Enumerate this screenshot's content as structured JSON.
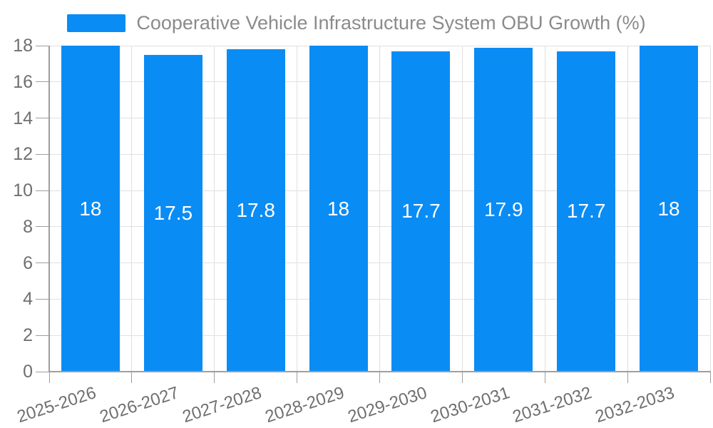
{
  "chart_data": {
    "type": "bar",
    "title": "",
    "legend_label": "Cooperative Vehicle Infrastructure System OBU Growth (%)",
    "legend_position": "top-center",
    "categories": [
      "2025-2026",
      "2026-2027",
      "2027-2028",
      "2028-2029",
      "2029-2030",
      "2030-2031",
      "2031-2032",
      "2032-2033"
    ],
    "values": [
      18,
      17.5,
      17.8,
      18,
      17.7,
      17.9,
      17.7,
      18
    ],
    "value_labels": [
      "18",
      "17.5",
      "17.8",
      "18",
      "17.7",
      "17.9",
      "17.7",
      "18"
    ],
    "xlabel": "",
    "ylabel": "",
    "ylim": [
      0,
      18
    ],
    "yticks": [
      0,
      2,
      4,
      6,
      8,
      10,
      12,
      14,
      16,
      18
    ],
    "grid": true,
    "colors": {
      "bar": "#0a8cf5",
      "grid_line": "#e0e0e0",
      "axis_line": "#9e9e9e",
      "tick_label": "#6f6f6f",
      "legend_text": "#8b8b8b",
      "value_label": "#ffffff",
      "background": "#ffffff"
    }
  }
}
